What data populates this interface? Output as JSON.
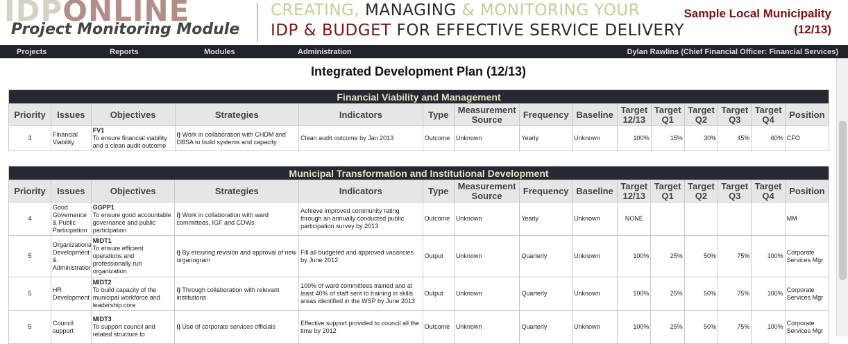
{
  "brand": {
    "logo_part1": "IDP",
    "logo_part2": "ONLINE",
    "subtitle": "Project Monitoring Module",
    "slogan_line1": [
      "CREATING, ",
      "MANAGING",
      " & MONITORING YOUR"
    ],
    "slogan_line2": [
      "IDP & BUDGET",
      " FOR EFFECTIVE SERVICE DELIVERY"
    ]
  },
  "municipality": {
    "name": "Sample Local Municipality",
    "period": "(12/13)"
  },
  "nav": {
    "items": [
      "Projects",
      "Reports",
      "Modules",
      "Administration"
    ],
    "user": "Dylan Rawlins (Chief Financial Officer: Financial Services)"
  },
  "page_title": "Integrated Development Plan (12/13)",
  "columns": [
    "Priority",
    "Issues",
    "Objectives",
    "Strategies",
    "Indicators",
    "Type",
    "Measurement Source",
    "Frequency",
    "Baseline",
    "Target 12/13",
    "Target Q1",
    "Target Q2",
    "Target Q3",
    "Target Q4",
    "Position"
  ],
  "sections": [
    {
      "title": "Financial Viability and Management",
      "rows": [
        {
          "priority": "3",
          "issue": "Financial Viability",
          "obj_code": "FV1",
          "obj_text": "To ensure financial viability and a clean audit outcome",
          "strategy_num": "i)",
          "strategy": "Work in collaboration with CHDM and DBSA to build systems and capacity",
          "indicator": "Clean audit outcome by Jan 2013",
          "type": "Outcome",
          "source": "Unknown",
          "frequency": "Yearly",
          "baseline": "Unknown",
          "target": "100%",
          "q1": "15%",
          "q2": "30%",
          "q3": "45%",
          "q4": "60%",
          "position": "CFO"
        }
      ]
    },
    {
      "title": "Municipal Transformation and Institutional Development",
      "rows": [
        {
          "priority": "4",
          "issue": "Good Governance & Public Participation",
          "obj_code": "GGPP1",
          "obj_text": "To ensure good accountable governance and public participation",
          "strategy_num": "i)",
          "strategy": "Work in collaboration with ward committees, IGF and CDWs",
          "indicator": "Achieve improved community rating through an annually conducted public participation survey by 2013",
          "type": "Outcome",
          "source": "Unknown",
          "frequency": "Yearly",
          "baseline": "Unknown",
          "target": "NONE",
          "q1": "",
          "q2": "",
          "q3": "",
          "q4": "",
          "position": "MM"
        },
        {
          "priority": "5",
          "issue": "Organizational Development & Administration",
          "obj_code": "MIDT1",
          "obj_text": "To ensure efficient operations and professionally run organization",
          "strategy_num": "i)",
          "strategy": "By ensuring revision and approval of new organogram",
          "indicator": "Fill all budgeted and approved vacancies by June 2012",
          "type": "Output",
          "source": "Unknown",
          "frequency": "Quarterly",
          "baseline": "Unknown",
          "target": "100%",
          "q1": "25%",
          "q2": "50%",
          "q3": "75%",
          "q4": "100%",
          "position": "Corporate Services Mgr"
        },
        {
          "priority": "5",
          "issue": "HR Development",
          "obj_code": "MIDT2",
          "obj_text": "To build capacity of the municipal workforce and leadership core",
          "strategy_num": "i)",
          "strategy": "Through collaboration with relevant institutions",
          "indicator": "100% of ward committees trained and at least 40% of staff sent to training in skills areas identified in the WSP by June 2013",
          "type": "Output",
          "source": "Unknown",
          "frequency": "Quarterly",
          "baseline": "Unknown",
          "target": "100%",
          "q1": "25%",
          "q2": "50%",
          "q3": "75%",
          "q4": "100%",
          "position": "Corporate Services Mgr"
        },
        {
          "priority": "5",
          "issue": "Council support",
          "obj_code": "MIDT3",
          "obj_text": "To support council and related structure to",
          "strategy_num": "i)",
          "strategy": "Use of corporate services officials",
          "indicator": "Effective support provided to council all the time by 2012",
          "type": "Outcome",
          "source": "Unknown",
          "frequency": "Quarterly",
          "baseline": "Unknown",
          "target": "100%",
          "q1": "25%",
          "q2": "50%",
          "q3": "75%",
          "q4": "100%",
          "position": "Corporate Services Mgr"
        }
      ]
    }
  ]
}
